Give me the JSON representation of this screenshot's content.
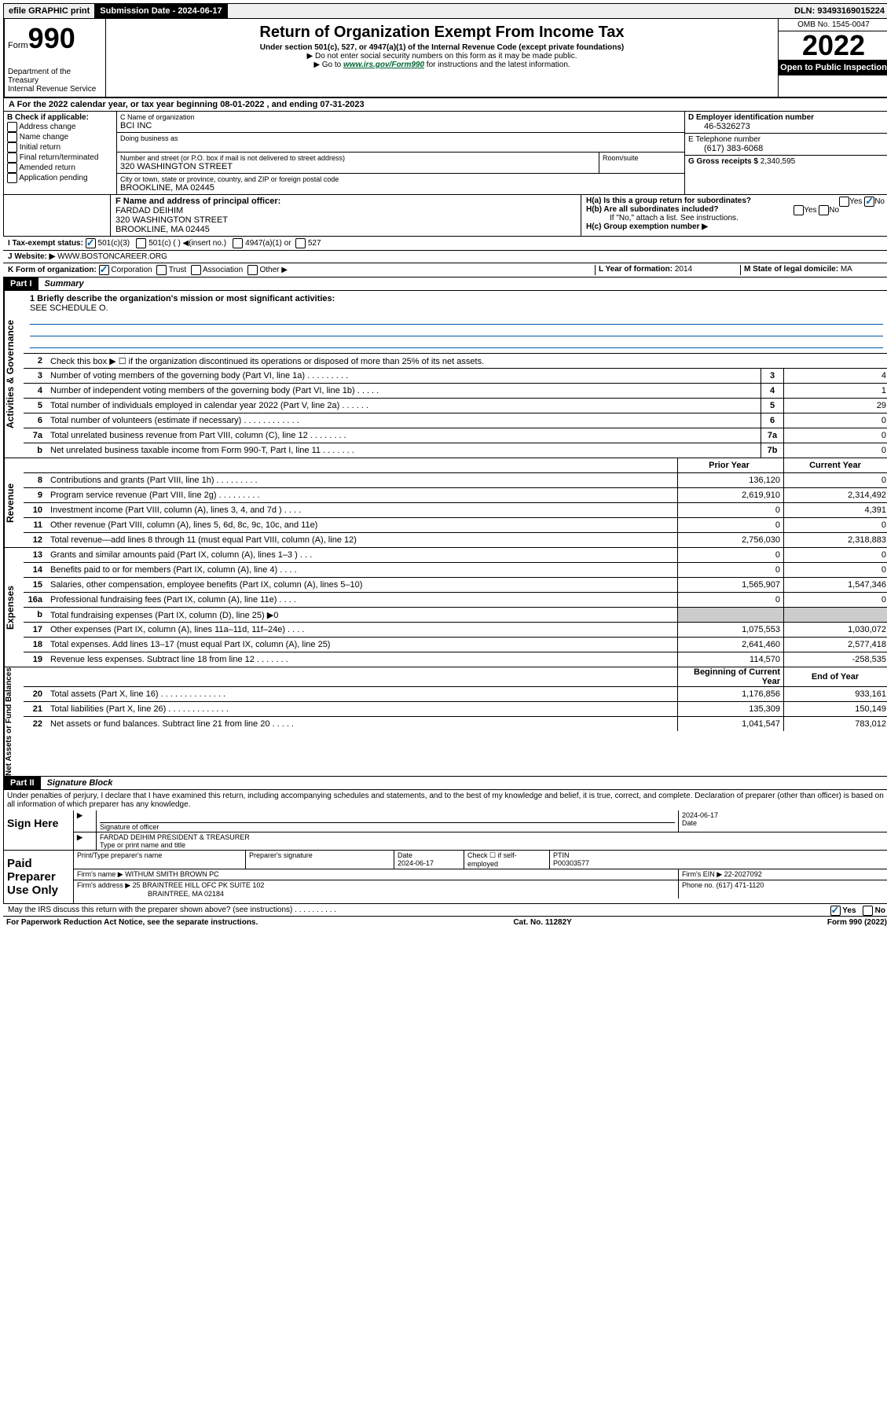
{
  "topbar": {
    "efile": "efile GRAPHIC print",
    "submission_label": "Submission Date - 2024-06-17",
    "dln": "DLN: 93493169015224"
  },
  "header": {
    "form_word": "Form",
    "form_num": "990",
    "dept": "Department of the Treasury",
    "irs": "Internal Revenue Service",
    "title": "Return of Organization Exempt From Income Tax",
    "sub": "Under section 501(c), 527, or 4947(a)(1) of the Internal Revenue Code (except private foundations)",
    "note1": "▶ Do not enter social security numbers on this form as it may be made public.",
    "note2_pre": "▶ Go to ",
    "note2_link": "www.irs.gov/Form990",
    "note2_post": " for instructions and the latest information.",
    "omb": "OMB No. 1545-0047",
    "year": "2022",
    "open": "Open to Public Inspection"
  },
  "rowA": "A For the 2022 calendar year, or tax year beginning 08-01-2022    , and ending 07-31-2023",
  "colB": {
    "hdr": "B Check if applicable:",
    "items": [
      "Address change",
      "Name change",
      "Initial return",
      "Final return/terminated",
      "Amended return",
      "Application pending"
    ]
  },
  "c": {
    "name_lbl": "C Name of organization",
    "name": "BCI INC",
    "dba_lbl": "Doing business as",
    "addr_lbl": "Number and street (or P.O. box if mail is not delivered to street address)",
    "room_lbl": "Room/suite",
    "addr": "320 WASHINGTON STREET",
    "city_lbl": "City or town, state or province, country, and ZIP or foreign postal code",
    "city": "BROOKLINE, MA  02445"
  },
  "d": {
    "lbl": "D Employer identification number",
    "val": "46-5326273"
  },
  "e": {
    "lbl": "E Telephone number",
    "val": "(617) 383-6068"
  },
  "g": {
    "lbl": "G Gross receipts $",
    "val": "2,340,595"
  },
  "f": {
    "lbl": "F Name and address of principal officer:",
    "name": "FARDAD DEIHIM",
    "addr1": "320 WASHINGTON STREET",
    "addr2": "BROOKLINE, MA  02445"
  },
  "h": {
    "a_lbl": "H(a)  Is this a group return for subordinates?",
    "a_yes": "Yes",
    "a_no": "No",
    "b_lbl": "H(b)  Are all subordinates included?",
    "b_yes": "Yes",
    "b_no": "No",
    "b_note": "If \"No,\" attach a list. See instructions.",
    "c_lbl": "H(c)  Group exemption number ▶"
  },
  "i": {
    "lbl": "I    Tax-exempt status:",
    "opt1": "501(c)(3)",
    "opt2": "501(c) (  ) ◀(insert no.)",
    "opt3": "4947(a)(1) or",
    "opt4": "527"
  },
  "j": {
    "lbl": "J   Website: ▶",
    "val": "WWW.BOSTONCAREER.ORG"
  },
  "k": {
    "lbl": "K Form of organization:",
    "opts": [
      "Corporation",
      "Trust",
      "Association",
      "Other ▶"
    ]
  },
  "l": {
    "lbl": "L Year of formation:",
    "val": "2014"
  },
  "m": {
    "lbl": "M State of legal domicile:",
    "val": "MA"
  },
  "part1": {
    "hdr": "Part I",
    "title": "Summary"
  },
  "mission": {
    "lbl": "1  Briefly describe the organization's mission or most significant activities:",
    "val": "SEE SCHEDULE O."
  },
  "gov": {
    "label": "Activities & Governance",
    "l2": "Check this box ▶ ☐  if the organization discontinued its operations or disposed of more than 25% of its net assets.",
    "rows": [
      {
        "n": "3",
        "d": "Number of voting members of the governing body (Part VI, line 1a)   .    .    .    .    .    .    .    .    .",
        "b": "3",
        "v": "4"
      },
      {
        "n": "4",
        "d": "Number of independent voting members of the governing body (Part VI, line 1b)   .    .    .    .    .",
        "b": "4",
        "v": "1"
      },
      {
        "n": "5",
        "d": "Total number of individuals employed in calendar year 2022 (Part V, line 2a)   .    .    .    .    .    .",
        "b": "5",
        "v": "29"
      },
      {
        "n": "6",
        "d": "Total number of volunteers (estimate if necessary)   .    .    .    .    .    .    .    .    .    .    .    .",
        "b": "6",
        "v": "0"
      },
      {
        "n": "7a",
        "d": "Total unrelated business revenue from Part VIII, column (C), line 12   .    .    .    .    .    .    .    .",
        "b": "7a",
        "v": "0"
      },
      {
        "n": "b",
        "d": "Net unrelated business taxable income from Form 990-T, Part I, line 11   .    .    .    .    .    .    .",
        "b": "7b",
        "v": "0"
      }
    ]
  },
  "cols": {
    "prior": "Prior Year",
    "current": "Current Year",
    "beg": "Beginning of Current Year",
    "end": "End of Year"
  },
  "rev": {
    "label": "Revenue",
    "rows": [
      {
        "n": "8",
        "d": "Contributions and grants (Part VIII, line 1h)   .    .    .    .    .    .    .    .    .",
        "p": "136,120",
        "c": "0"
      },
      {
        "n": "9",
        "d": "Program service revenue (Part VIII, line 2g)   .    .    .    .    .    .    .    .    .",
        "p": "2,619,910",
        "c": "2,314,492"
      },
      {
        "n": "10",
        "d": "Investment income (Part VIII, column (A), lines 3, 4, and 7d )   .    .    .    .",
        "p": "0",
        "c": "4,391"
      },
      {
        "n": "11",
        "d": "Other revenue (Part VIII, column (A), lines 5, 6d, 8c, 9c, 10c, and 11e)",
        "p": "0",
        "c": "0"
      },
      {
        "n": "12",
        "d": "Total revenue—add lines 8 through 11 (must equal Part VIII, column (A), line 12)",
        "p": "2,756,030",
        "c": "2,318,883"
      }
    ]
  },
  "exp": {
    "label": "Expenses",
    "rows": [
      {
        "n": "13",
        "d": "Grants and similar amounts paid (Part IX, column (A), lines 1–3 )   .    .    .",
        "p": "0",
        "c": "0"
      },
      {
        "n": "14",
        "d": "Benefits paid to or for members (Part IX, column (A), line 4)   .    .    .    .",
        "p": "0",
        "c": "0"
      },
      {
        "n": "15",
        "d": "Salaries, other compensation, employee benefits (Part IX, column (A), lines 5–10)",
        "p": "1,565,907",
        "c": "1,547,346"
      },
      {
        "n": "16a",
        "d": "Professional fundraising fees (Part IX, column (A), line 11e)   .    .    .    .",
        "p": "0",
        "c": "0"
      },
      {
        "n": "b",
        "d": "Total fundraising expenses (Part IX, column (D), line 25) ▶0",
        "p": "",
        "c": "",
        "grey": true
      },
      {
        "n": "17",
        "d": "Other expenses (Part IX, column (A), lines 11a–11d, 11f–24e)   .    .    .    .",
        "p": "1,075,553",
        "c": "1,030,072"
      },
      {
        "n": "18",
        "d": "Total expenses. Add lines 13–17 (must equal Part IX, column (A), line 25)",
        "p": "2,641,460",
        "c": "2,577,418"
      },
      {
        "n": "19",
        "d": "Revenue less expenses. Subtract line 18 from line 12   .    .    .    .    .    .    .",
        "p": "114,570",
        "c": "-258,535"
      }
    ]
  },
  "net": {
    "label": "Net Assets or Fund Balances",
    "rows": [
      {
        "n": "20",
        "d": "Total assets (Part X, line 16)   .    .    .    .    .    .    .    .    .    .    .    .    .    .",
        "p": "1,176,856",
        "c": "933,161"
      },
      {
        "n": "21",
        "d": "Total liabilities (Part X, line 26)   .    .    .    .    .    .    .    .    .    .    .    .    .",
        "p": "135,309",
        "c": "150,149"
      },
      {
        "n": "22",
        "d": "Net assets or fund balances. Subtract line 21 from line 20   .    .    .    .    .",
        "p": "1,041,547",
        "c": "783,012"
      }
    ]
  },
  "part2": {
    "hdr": "Part II",
    "title": "Signature Block"
  },
  "penalty": "Under penalties of perjury, I declare that I have examined this return, including accompanying schedules and statements, and to the best of my knowledge and belief, it is true, correct, and complete. Declaration of preparer (other than officer) is based on all information of which preparer has any knowledge.",
  "sign": {
    "here": "Sign Here",
    "sig_officer": "Signature of officer",
    "date": "2024-06-17",
    "date_lbl": "Date",
    "name": "FARDAD DEIHIM  PRESIDENT & TREASURER",
    "name_lbl": "Type or print name and title"
  },
  "paid": {
    "hdr": "Paid Preparer Use Only",
    "c1": "Print/Type preparer's name",
    "c2": "Preparer's signature",
    "c3_lbl": "Date",
    "c3": "2024-06-17",
    "c4": "Check ☐ if self-employed",
    "c5_lbl": "PTIN",
    "c5": "P00303577",
    "firm_lbl": "Firm's name     ▶",
    "firm": "WITHUM SMITH BROWN PC",
    "ein_lbl": "Firm's EIN ▶",
    "ein": "22-2027092",
    "addr_lbl": "Firm's address ▶",
    "addr1": "25 BRAINTREE HILL OFC PK SUITE 102",
    "addr2": "BRAINTREE, MA  02184",
    "phone_lbl": "Phone no.",
    "phone": "(617) 471-1120"
  },
  "may": {
    "q": "May the IRS discuss this return with the preparer shown above? (see instructions)   .    .    .    .    .    .    .    .    .    .",
    "yes": "Yes",
    "no": "No"
  },
  "footer": {
    "left": "For Paperwork Reduction Act Notice, see the separate instructions.",
    "mid": "Cat. No. 11282Y",
    "right": "Form 990 (2022)"
  }
}
